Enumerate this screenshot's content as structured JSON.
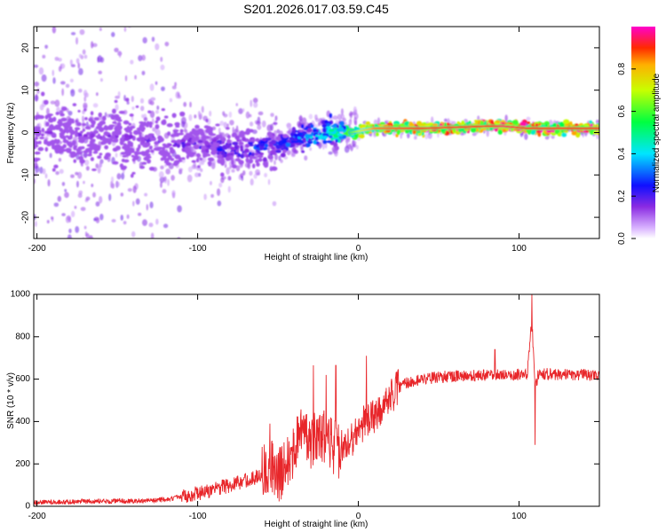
{
  "title": "S201.2026.017.03.59.C45",
  "colors": {
    "snr_line": "#e8262a",
    "frame": "#000000"
  },
  "chart_data": [
    {
      "type": "heatmap",
      "name": "spectrogram",
      "xlabel": "Height of straight line (km)",
      "ylabel": "Frequency (Hz)",
      "xlim": [
        -202,
        150
      ],
      "ylim": [
        -25,
        25
      ],
      "xticks": [
        -200,
        -100,
        0,
        100
      ],
      "yticks": [
        -20,
        -10,
        0,
        10,
        20
      ],
      "colorbar": {
        "label": "Normalized spectral amplitude",
        "range": [
          0,
          1
        ],
        "ticks": [
          "0.0",
          "0.2",
          "0.4",
          "0.6",
          "0.8"
        ],
        "colormap": "rainbow (white-purple-blue-cyan-green-yellow-red-magenta)"
      },
      "ridge": {
        "description": "Dominant spectral ridge: broad noisy band near 0 Hz at low heights, narrowing into a strong ~1 Hz line above 0 km",
        "height_km": [
          -200,
          -150,
          -110,
          -80,
          -55,
          -35,
          -20,
          -5,
          10,
          40,
          80,
          90,
          105,
          150
        ],
        "frequency_hz": [
          0,
          -1,
          -2.5,
          -4,
          -3.5,
          -1,
          0,
          0,
          1,
          1,
          1.5,
          1.5,
          1,
          1
        ],
        "amplitude": [
          0.15,
          0.15,
          0.2,
          0.25,
          0.3,
          0.35,
          0.45,
          0.6,
          0.85,
          0.9,
          0.9,
          0.95,
          0.9,
          0.9
        ]
      }
    },
    {
      "type": "line",
      "name": "snr",
      "xlabel": "Height of straight line (km)",
      "ylabel": "SNR (10 * v/v)",
      "xlim": [
        -202,
        150
      ],
      "ylim": [
        0,
        1000
      ],
      "xticks": [
        -200,
        -100,
        0,
        100
      ],
      "yticks": [
        0,
        200,
        400,
        600,
        800,
        1000
      ],
      "series": [
        {
          "name": "SNR",
          "x": [
            -202,
            -180,
            -160,
            -140,
            -120,
            -110,
            -100,
            -90,
            -80,
            -70,
            -60,
            -55,
            -50,
            -45,
            -40,
            -35,
            -30,
            -25,
            -20,
            -15,
            -10,
            -5,
            0,
            5,
            10,
            15,
            20,
            25,
            30,
            40,
            50,
            60,
            70,
            80,
            90,
            100,
            105,
            108,
            110,
            112,
            115,
            130,
            150
          ],
          "y": [
            20,
            20,
            25,
            25,
            30,
            45,
            60,
            80,
            100,
            120,
            150,
            200,
            130,
            220,
            260,
            350,
            300,
            340,
            320,
            280,
            250,
            300,
            370,
            400,
            420,
            470,
            520,
            560,
            580,
            600,
            610,
            615,
            615,
            620,
            620,
            620,
            620,
            880,
            560,
            620,
            625,
            620,
            620
          ]
        }
      ],
      "spikes": [
        {
          "x": -55,
          "y": 390
        },
        {
          "x": -28,
          "y": 665
        },
        {
          "x": -20,
          "y": 620
        },
        {
          "x": -14,
          "y": 665
        },
        {
          "x": 5,
          "y": 710
        },
        {
          "x": 85,
          "y": 740
        },
        {
          "x": 108,
          "y": 1000
        },
        {
          "x": 110,
          "y": 290
        }
      ]
    }
  ]
}
